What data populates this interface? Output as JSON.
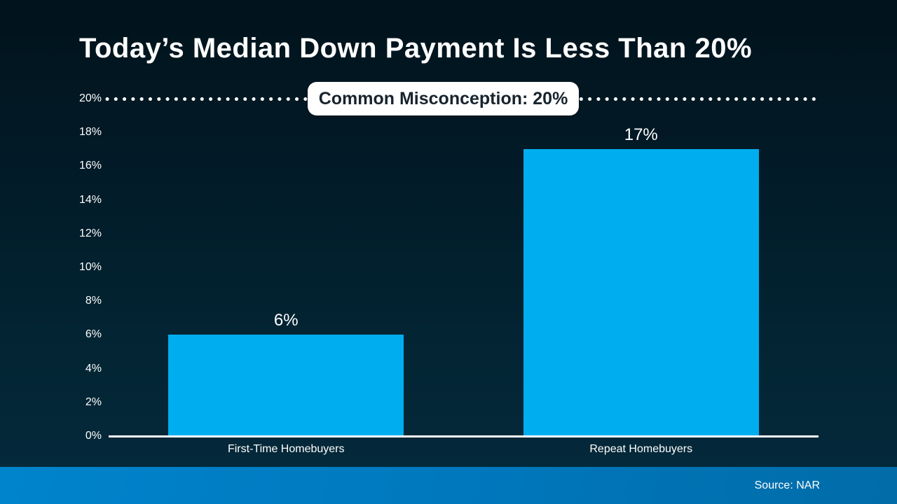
{
  "title": "Today’s Median Down Payment Is Less Than 20%",
  "annotation": {
    "label": "Common Misconception: 20%"
  },
  "footer": {
    "source": "Source: NAR"
  },
  "colors": {
    "bar": "#00AEEF",
    "background_top": "#01131C",
    "background_bottom": "#04293A",
    "footer_left": "#0084CC",
    "footer_right": "#016CA8",
    "text": "#FFFFFF",
    "annotation_bg": "#FFFFFF",
    "annotation_text": "#18242E",
    "dotted_line": "#FFFFFF"
  },
  "chart_data": {
    "type": "bar",
    "title": "Today’s Median Down Payment Is Less Than 20%",
    "categories": [
      "First-Time Homebuyers",
      "Repeat Homebuyers"
    ],
    "values": [
      6,
      17
    ],
    "value_labels": [
      "6%",
      "17%"
    ],
    "xlabel": "",
    "ylabel": "",
    "ylim": [
      0,
      20
    ],
    "ytick_values": [
      0,
      2,
      4,
      6,
      8,
      10,
      12,
      14,
      16,
      18,
      20
    ],
    "ytick_labels": [
      "0%",
      "2%",
      "4%",
      "6%",
      "8%",
      "10%",
      "12%",
      "14%",
      "16%",
      "18%",
      "20%"
    ],
    "grid": false,
    "legend": "none",
    "bar_color": "#00AEEF",
    "reference_line": {
      "value": 20,
      "style": "dotted",
      "color": "#FFFFFF",
      "label": "Common Misconception: 20%"
    },
    "source": "Source: NAR"
  }
}
